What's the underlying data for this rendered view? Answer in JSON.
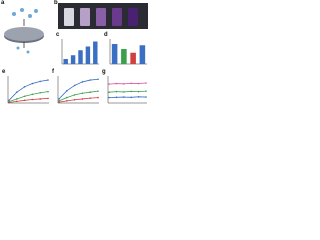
{
  "panels": [
    {
      "label": "a"
    },
    {
      "label": "b"
    },
    {
      "label": "c",
      "type": "bar",
      "values": [
        20,
        35,
        55,
        70,
        90
      ],
      "color": "#3a6fc4",
      "ylim": [
        0,
        100
      ]
    },
    {
      "label": "d",
      "type": "bar",
      "values": [
        80,
        60,
        45,
        75
      ],
      "colors": [
        "#3a6fc4",
        "#3aa04a",
        "#d04040",
        "#3a6fc4"
      ],
      "ylim": [
        0,
        100
      ]
    },
    {
      "label": "e",
      "type": "line",
      "x": [
        0,
        1,
        2,
        3,
        4,
        5
      ],
      "xlim": [
        0,
        5
      ],
      "ylim": [
        0,
        100
      ],
      "series": [
        {
          "color": "#3a6fc4",
          "values": [
            10,
            40,
            60,
            72,
            80,
            85
          ]
        },
        {
          "color": "#3aa04a",
          "values": [
            5,
            15,
            25,
            32,
            38,
            42
          ]
        },
        {
          "color": "#d04040",
          "values": [
            2,
            6,
            10,
            13,
            15,
            17
          ]
        }
      ]
    },
    {
      "label": "f",
      "type": "line",
      "x": [
        0,
        1,
        2,
        3,
        4,
        5
      ],
      "xlim": [
        0,
        5
      ],
      "ylim": [
        0,
        100
      ],
      "series": [
        {
          "color": "#3a6fc4",
          "values": [
            15,
            45,
            65,
            78,
            85,
            88
          ]
        },
        {
          "color": "#3aa04a",
          "values": [
            8,
            20,
            30,
            36,
            40,
            44
          ]
        },
        {
          "color": "#d04040",
          "values": [
            3,
            8,
            12,
            15,
            18,
            20
          ]
        }
      ]
    },
    {
      "label": "g",
      "type": "line",
      "x": [
        0,
        1,
        2,
        3,
        4,
        5
      ],
      "xlim": [
        0,
        5
      ],
      "ylim": [
        0,
        100
      ],
      "series": [
        {
          "color": "#e05a9a",
          "values": [
            70,
            72,
            71,
            73,
            72,
            74
          ]
        },
        {
          "color": "#3aa04a",
          "values": [
            40,
            42,
            41,
            43,
            42,
            44
          ]
        },
        {
          "color": "#3a6fc4",
          "values": [
            20,
            21,
            22,
            21,
            23,
            22
          ]
        }
      ]
    }
  ]
}
